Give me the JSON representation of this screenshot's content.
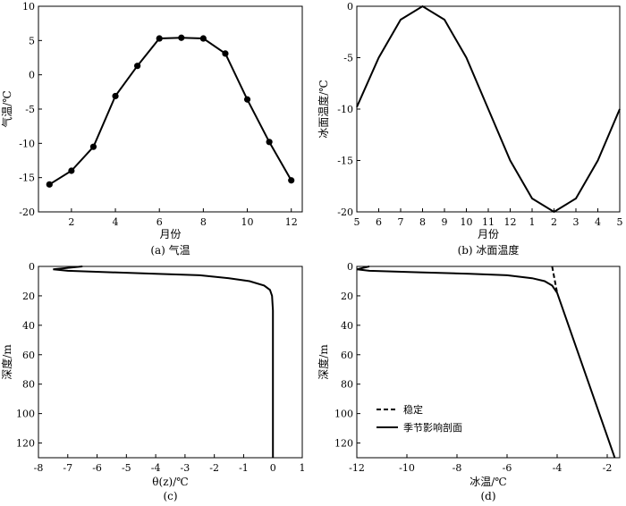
{
  "chart_data": [
    {
      "id": "a",
      "type": "line",
      "xlabel": "月份",
      "ylabel": "气温/℃",
      "caption": "(a) 气温",
      "xlim": [
        0.5,
        12.5
      ],
      "ylim": [
        -20,
        10
      ],
      "x_ticks": [
        2,
        4,
        6,
        8,
        10,
        12
      ],
      "x_tick_labels": [
        "2",
        "4",
        "6",
        "8",
        "10",
        "12"
      ],
      "y_ticks": [
        10,
        5,
        0,
        -5,
        -10,
        -15,
        -20
      ],
      "y_tick_labels": [
        "10",
        "5",
        "0",
        "-5",
        "-10",
        "-15",
        "-20"
      ],
      "grid": false,
      "series": [
        {
          "markers": true,
          "x": [
            1,
            2,
            3,
            4,
            5,
            6,
            7,
            8,
            9,
            10,
            11,
            12
          ],
          "y": [
            -16.0,
            -14.0,
            -10.5,
            -3.1,
            1.3,
            5.3,
            5.4,
            5.3,
            3.1,
            -3.6,
            -9.8,
            -15.4
          ]
        }
      ]
    },
    {
      "id": "b",
      "type": "line",
      "xlabel": "月份",
      "ylabel": "冰面温度/℃",
      "caption": "(b) 冰面温度",
      "xlim": [
        0,
        12
      ],
      "ylim": [
        -20,
        0
      ],
      "x_ticks": [
        0,
        1,
        2,
        3,
        4,
        5,
        6,
        7,
        8,
        9,
        10,
        11,
        12
      ],
      "x_tick_labels": [
        "5",
        "6",
        "7",
        "8",
        "9",
        "10",
        "11",
        "12",
        "1",
        "2",
        "3",
        "4",
        "5"
      ],
      "y_ticks": [
        0,
        -5,
        -10,
        -15,
        -20
      ],
      "y_tick_labels": [
        "0",
        "-5",
        "-10",
        "-15",
        "-20"
      ],
      "grid": false,
      "series": [
        {
          "markers": false,
          "x": [
            0,
            1,
            2,
            3,
            4,
            5,
            6,
            7,
            8,
            9,
            10,
            11,
            12
          ],
          "y": [
            -9.8,
            -5.0,
            -1.3,
            0.0,
            -1.3,
            -5.0,
            -10.0,
            -15.0,
            -18.7,
            -20.0,
            -18.7,
            -15.0,
            -10.0
          ]
        }
      ]
    },
    {
      "id": "c",
      "type": "line",
      "xlabel": "θ(z)/℃",
      "ylabel": "深度/m",
      "caption": "(c)",
      "xlim": [
        -8,
        1
      ],
      "ylim": [
        0,
        130
      ],
      "y_inverted": true,
      "x_ticks": [
        -8,
        -7,
        -6,
        -5,
        -4,
        -3,
        -2,
        -1,
        0,
        1
      ],
      "x_tick_labels": [
        "-8",
        "-7",
        "-6",
        "-5",
        "-4",
        "-3",
        "-2",
        "-1",
        "0",
        "1"
      ],
      "y_ticks": [
        0,
        20,
        40,
        60,
        80,
        100,
        120
      ],
      "y_tick_labels": [
        "0",
        "20",
        "40",
        "60",
        "80",
        "100",
        "120"
      ],
      "grid": false,
      "series": [
        {
          "markers": false,
          "x": [
            -6.5,
            -7.5,
            -7.0,
            -5.5,
            -4.0,
            -2.5,
            -1.5,
            -0.8,
            -0.3,
            -0.1,
            -0.03,
            0.0,
            0.0
          ],
          "y": [
            0,
            2,
            3,
            4,
            5,
            6,
            8,
            10,
            13,
            16,
            20,
            30,
            130
          ]
        }
      ]
    },
    {
      "id": "d",
      "type": "line",
      "xlabel": "冰温/℃",
      "ylabel": "深度/m",
      "caption": "(d)",
      "xlim": [
        -12,
        -1.5
      ],
      "ylim": [
        0,
        130
      ],
      "y_inverted": true,
      "x_ticks": [
        -12,
        -10,
        -8,
        -6,
        -4,
        -2
      ],
      "x_tick_labels": [
        "-12",
        "-10",
        "-8",
        "-6",
        "-4",
        "-2"
      ],
      "y_ticks": [
        0,
        20,
        40,
        60,
        80,
        100,
        120
      ],
      "y_tick_labels": [
        "0",
        "20",
        "40",
        "60",
        "80",
        "100",
        "120"
      ],
      "legend_position": "bottom-left",
      "grid": false,
      "series": [
        {
          "name": "稳定",
          "style": "dashed",
          "x": [
            -4.2,
            -4.0
          ],
          "y": [
            0,
            18
          ]
        },
        {
          "name": "季节影响剖面",
          "style": "solid",
          "x": [
            -11.5,
            -12.0,
            -11.5,
            -9.5,
            -7.5,
            -6.0,
            -5.0,
            -4.5,
            -4.2,
            -4.0,
            -1.7
          ],
          "y": [
            0,
            2,
            3,
            4,
            5,
            6,
            8,
            10,
            13,
            18,
            130
          ]
        }
      ]
    }
  ]
}
